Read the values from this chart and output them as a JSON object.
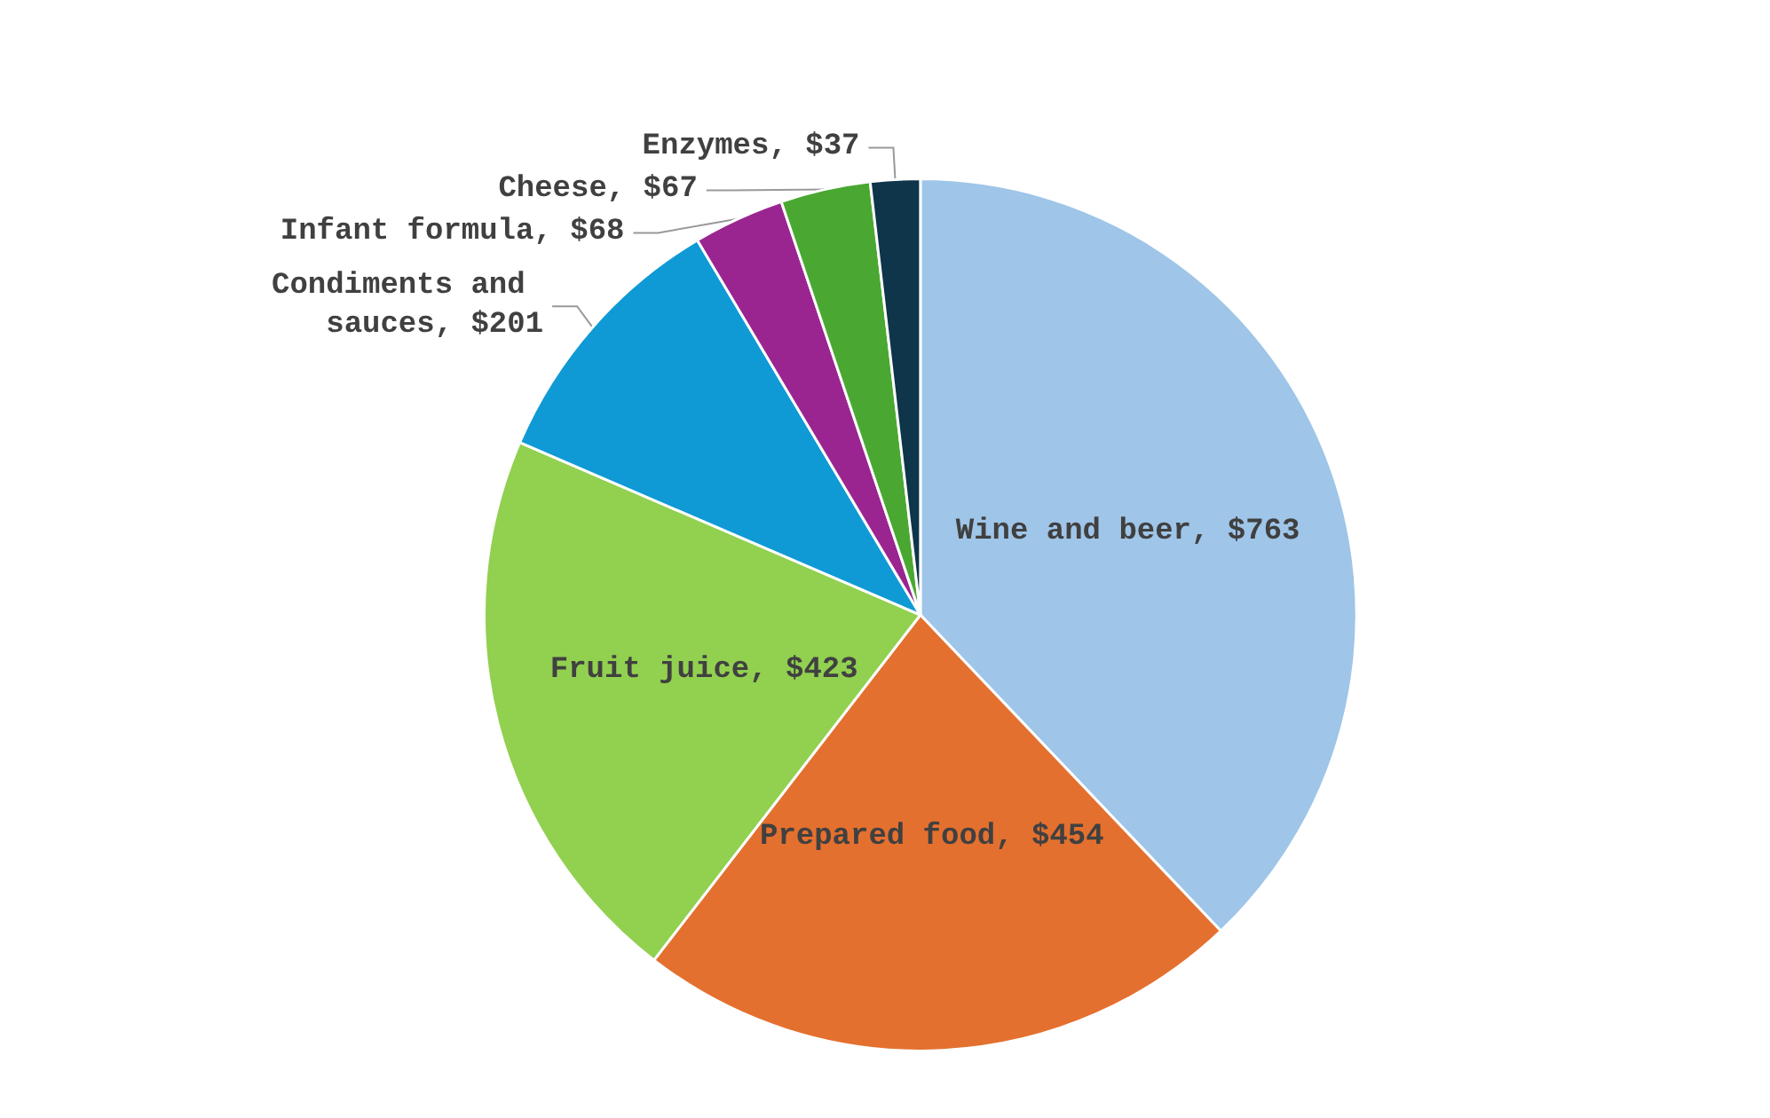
{
  "chart_data": {
    "type": "pie",
    "categories": [
      "Wine and beer",
      "Prepared food",
      "Fruit juice",
      "Condiments and sauces",
      "Infant formula",
      "Cheese",
      "Enzymes"
    ],
    "values": [
      763,
      454,
      423,
      201,
      68,
      67,
      37
    ],
    "value_labels": [
      "$763",
      "$454",
      "$423",
      "$201",
      "$68",
      "$67",
      "$37"
    ],
    "colors": [
      "#9fc5e8",
      "#e4702f",
      "#92d050",
      "#0f9ad6",
      "#9b2590",
      "#4aa832",
      "#0e3549"
    ],
    "legend": false
  }
}
